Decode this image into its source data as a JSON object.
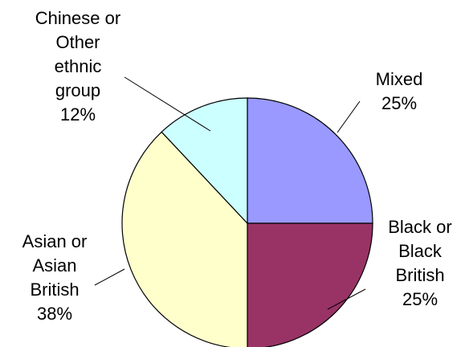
{
  "chart_data": {
    "type": "pie",
    "title": "",
    "slices": [
      {
        "label_lines": [
          "Mixed"
        ],
        "value": 25,
        "display": "25%",
        "color": "#9999ff"
      },
      {
        "label_lines": [
          "Black or",
          "Black",
          "British"
        ],
        "value": 25,
        "display": "25%",
        "color": "#993366"
      },
      {
        "label_lines": [
          "Asian or",
          "Asian",
          "British"
        ],
        "value": 38,
        "display": "38%",
        "color": "#ffffcc"
      },
      {
        "label_lines": [
          "Chinese or",
          "Other",
          "ethnic",
          "group"
        ],
        "value": 12,
        "display": "12%",
        "color": "#ccffff"
      }
    ],
    "start_angle_deg": 0,
    "direction": "clockwise",
    "outline_color": "#000000"
  }
}
